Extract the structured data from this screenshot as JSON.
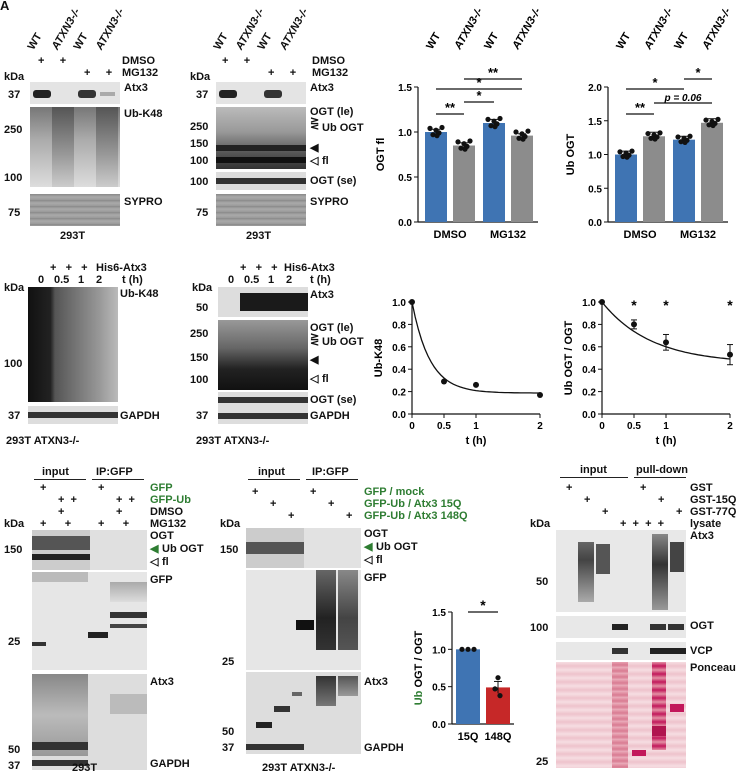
{
  "panel_letter": "A",
  "top_left": {
    "cols": [
      "WT",
      "ATXN3-/-",
      "WT",
      "ATXN3-/-"
    ],
    "dmso_label": "DMSO",
    "mg132_label": "MG132",
    "kda": "kDa",
    "markers": [
      "37",
      "250",
      "100",
      "75"
    ],
    "labels": [
      "Atx3",
      "Ub-K48",
      "SYPRO"
    ],
    "cell": "293T"
  },
  "top_mid": {
    "cols": [
      "WT",
      "ATXN3-/-",
      "WT",
      "ATXN3-/-"
    ],
    "dmso_label": "DMSO",
    "mg132_label": "MG132",
    "kda": "kDa",
    "markers": [
      "37",
      "250",
      "150",
      "100",
      "100",
      "75"
    ],
    "labels": [
      "Atx3",
      "OGT (le)",
      "Ub OGT",
      "fl",
      "OGT (se)",
      "SYPRO"
    ],
    "cell": "293T"
  },
  "chart_ogt_fl": {
    "type": "bar",
    "cols": [
      "WT",
      "ATXN3-/-",
      "WT",
      "ATXN3-/-"
    ],
    "categories": [
      "DMSO",
      "MG132"
    ],
    "ylabel": "OGT fl",
    "ylim": [
      0,
      1.5
    ],
    "yticks": [
      "0.0",
      "0.5",
      "1.0",
      "1.5"
    ],
    "values": [
      1.0,
      0.85,
      1.1,
      0.96
    ],
    "errors": [
      0.03,
      0.03,
      0.04,
      0.02
    ],
    "sig": [
      "*",
      "**",
      "**",
      "*"
    ]
  },
  "chart_ub_ogt": {
    "type": "bar",
    "cols": [
      "WT",
      "ATXN3-/-",
      "WT",
      "ATXN3-/-"
    ],
    "categories": [
      "DMSO",
      "MG132"
    ],
    "ylabel": "Ub OGT",
    "ylim": [
      0,
      2.0
    ],
    "yticks": [
      "0.0",
      "0.5",
      "1.0",
      "1.5",
      "2.0"
    ],
    "values": [
      1.0,
      1.27,
      1.22,
      1.47
    ],
    "errors": [
      0.05,
      0.06,
      0.05,
      0.06
    ],
    "sig": [
      "*",
      "*",
      "**"
    ],
    "pval": "p = 0.06"
  },
  "mid_left": {
    "his": "His6-Atx3",
    "t_label": "t (h)",
    "times": [
      "0",
      "0.5",
      "1",
      "2"
    ],
    "kda": "kDa",
    "markers": [
      "100",
      "37"
    ],
    "labels": [
      "Ub-K48",
      "GAPDH"
    ],
    "cell": "293T ATXN3-/-"
  },
  "mid_mid": {
    "his": "His6-Atx3",
    "t_label": "t (h)",
    "times": [
      "0",
      "0.5",
      "1",
      "2"
    ],
    "kda": "kDa",
    "markers": [
      "50",
      "250",
      "150",
      "100",
      "37"
    ],
    "labels": [
      "Atx3",
      "OGT (le)",
      "Ub OGT",
      "fl",
      "OGT (se)",
      "GAPDH"
    ],
    "cell": "293T ATXN3-/-"
  },
  "chart_ubk48": {
    "type": "line",
    "xlabel": "t (h)",
    "ylabel": "Ub-K48",
    "x": [
      0,
      0.5,
      1,
      2
    ],
    "y": [
      1.0,
      0.29,
      0.26,
      0.17
    ],
    "xticks": [
      "0",
      "0.5",
      "1",
      "2"
    ],
    "yticks": [
      "0.0",
      "0.2",
      "0.4",
      "0.6",
      "0.8",
      "1.0"
    ],
    "ylim": [
      0,
      1.0
    ]
  },
  "chart_ubogt": {
    "type": "line",
    "xlabel": "t (h)",
    "ylabel": "Ub OGT / OGT",
    "x": [
      0,
      0.5,
      1,
      2
    ],
    "y": [
      1.0,
      0.8,
      0.64,
      0.53
    ],
    "errors": [
      0,
      0.04,
      0.07,
      0.09
    ],
    "xticks": [
      "0",
      "0.5",
      "1",
      "2"
    ],
    "yticks": [
      "0.0",
      "0.2",
      "0.4",
      "0.6",
      "0.8",
      "1.0"
    ],
    "ylim": [
      0,
      1.0
    ],
    "sig_x": [
      0.5,
      1,
      2
    ]
  },
  "bot_left": {
    "input": "input",
    "ip": "IP:GFP",
    "rows": [
      "GFP",
      "GFP-Ub",
      "DMSO",
      "MG132"
    ],
    "kda": "kDa",
    "markers": [
      "150",
      "25",
      "50",
      "37"
    ],
    "labels": [
      "OGT",
      "Ub OGT",
      "fl",
      "GFP",
      "Atx3",
      "GAPDH"
    ],
    "cell": "293T"
  },
  "bot_mid": {
    "input": "input",
    "ip": "IP:GFP",
    "rows": [
      "GFP / mock",
      "GFP-Ub / Atx3 15Q",
      "GFP-Ub / Atx3 148Q"
    ],
    "kda": "kDa",
    "markers": [
      "150",
      "25",
      "50",
      "37"
    ],
    "labels": [
      "OGT",
      "Ub OGT",
      "fl",
      "GFP",
      "Atx3",
      "GAPDH"
    ],
    "cell": "293T ATXN3-/-"
  },
  "chart_polyq": {
    "type": "bar",
    "categories": [
      "15Q",
      "148Q"
    ],
    "values": [
      1.0,
      0.49
    ],
    "errors": [
      0,
      0.08
    ],
    "ylabel_green": "Ub",
    "ylabel_rest": " OGT / OGT",
    "ylim": [
      0,
      1.5
    ],
    "yticks": [
      "0.0",
      "0.5",
      "1.0",
      "1.5"
    ],
    "sig": "*"
  },
  "bot_right": {
    "input": "input",
    "pull": "pull-down",
    "rows": [
      "GST",
      "GST-15Q",
      "GST-77Q",
      "lysate"
    ],
    "kda": "kDa",
    "markers": [
      "50",
      "100",
      "25"
    ],
    "labels": [
      "Atx3",
      "OGT",
      "VCP",
      "Ponceau"
    ]
  },
  "colors": {
    "blue": "#3f74b3",
    "gray": "#8c8c8c",
    "red": "#c62828",
    "green": "#2e7d32"
  }
}
